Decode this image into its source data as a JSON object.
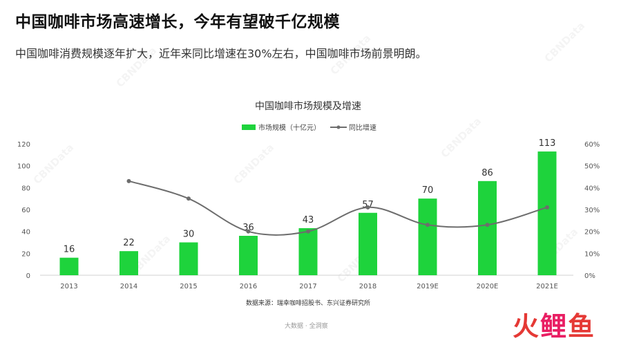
{
  "header": {
    "title": "中国咖啡市场高速增长，今年有望破千亿规模",
    "subtitle": "中国咖啡消费规模逐年扩大，近年来同比增速在30%左右，中国咖啡市场前景明朗。"
  },
  "watermark_text": "CBNData",
  "chart_data": {
    "type": "bar",
    "title": "中国咖啡市场规模及增速",
    "categories": [
      "2013",
      "2014",
      "2015",
      "2016",
      "2017",
      "2018",
      "2019E",
      "2020E",
      "2021E"
    ],
    "series": [
      {
        "name": "市场规模（十亿元）",
        "type": "bar",
        "axis": "left",
        "color": "#1ed33c",
        "values": [
          16,
          22,
          30,
          36,
          43,
          57,
          70,
          86,
          113
        ]
      },
      {
        "name": "同比增速",
        "type": "line",
        "axis": "right",
        "color": "#6d6d6d",
        "values": [
          null,
          43,
          35,
          20,
          20,
          31,
          23,
          23,
          31
        ]
      }
    ],
    "y_left": {
      "min": 0,
      "max": 120,
      "ticks": [
        "0",
        "20",
        "40",
        "60",
        "80",
        "100",
        "120"
      ]
    },
    "y_right": {
      "min": 0,
      "max": 60,
      "ticks": [
        "0%",
        "10%",
        "20%",
        "30%",
        "40%",
        "50%",
        "60%"
      ]
    },
    "legend_position": "top-center",
    "source_note": "数据来源：瑞幸咖啡招股书、东兴证券研究所"
  },
  "footer": {
    "brand": "大数据 · 全洞察",
    "logo": [
      "火",
      "鲤",
      "鱼"
    ]
  }
}
